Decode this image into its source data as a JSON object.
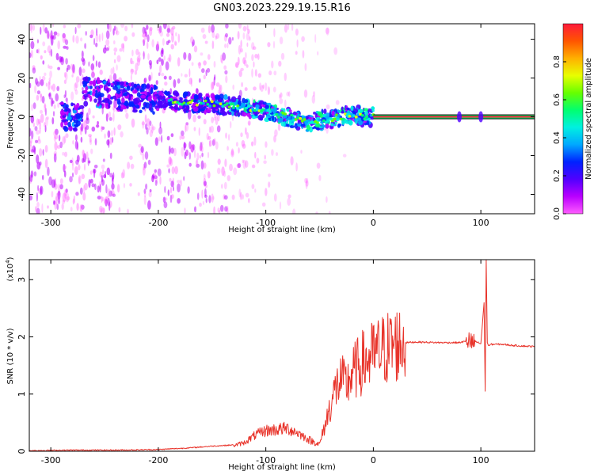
{
  "title": "GN03.2023.229.19.15.R16",
  "colors": {
    "snr_line": "#e8332a",
    "colorbar": [
      "#ff5cff",
      "#b900ff",
      "#5000ff",
      "#0022ff",
      "#00a8ff",
      "#00f0e0",
      "#00ff70",
      "#66ff00",
      "#e8ff00",
      "#ffb000",
      "#ff5500",
      "#ff1a3a"
    ]
  },
  "chart_data": [
    {
      "type": "heatmap",
      "xlabel": "Height of straight line (km)",
      "ylabel": "Frequency (Hz)",
      "xlim": [
        -320,
        150
      ],
      "ylim": [
        -50,
        48
      ],
      "xticks": [
        -300,
        -200,
        -100,
        0,
        100
      ],
      "xtick_labels": [
        "-300",
        "-200",
        "-100",
        "0",
        "100"
      ],
      "yticks": [
        -40,
        -20,
        0,
        20,
        40
      ],
      "ytick_labels": [
        "-40",
        "-20",
        "0",
        "20",
        "40"
      ],
      "colorbar": {
        "label": "Normalized spectral amplitude",
        "range": [
          0,
          1
        ],
        "ticks": [
          0.0,
          0.2,
          0.4,
          0.6,
          0.8
        ],
        "tick_labels": [
          "0.0",
          "0.2",
          "0.4",
          "0.6",
          "0.8"
        ]
      },
      "ridge": {
        "x": [
          -270,
          -250,
          -210,
          -190,
          -160,
          -140,
          -120,
          -100,
          -80,
          -60,
          -40,
          -20,
          0,
          40,
          80,
          100,
          150
        ],
        "y": [
          13,
          12,
          9,
          8,
          7,
          6,
          5,
          3,
          0,
          -3,
          -1,
          1,
          0,
          0,
          0,
          0,
          0
        ]
      }
    },
    {
      "type": "line",
      "xlabel": "Height of straight line (km)",
      "ylabel": "SNR (10 * v/v)",
      "y_scale_label": "(x10",
      "y_scale_exp": "4",
      "xlim": [
        -320,
        150
      ],
      "ylim": [
        0,
        3.35
      ],
      "xticks": [
        -300,
        -200,
        -100,
        0,
        100
      ],
      "xtick_labels": [
        "-300",
        "-200",
        "-100",
        "0",
        "100"
      ],
      "yticks": [
        0,
        1,
        2,
        3
      ],
      "ytick_labels": [
        "0",
        "1",
        "2",
        "3"
      ],
      "series": [
        {
          "x": [
            -320,
            -280,
            -240,
            -200,
            -170,
            -150,
            -130,
            -120,
            -110,
            -100,
            -90,
            -80,
            -70,
            -60,
            -50,
            -45,
            -40,
            -35,
            -30,
            -25,
            -20,
            -15,
            -10,
            -5,
            0,
            10,
            20,
            30,
            40,
            60,
            80,
            88,
            92,
            95,
            100,
            103,
            104,
            105,
            106,
            107,
            110,
            120,
            130,
            150
          ],
          "y": [
            0.0,
            0.01,
            0.01,
            0.02,
            0.05,
            0.08,
            0.1,
            0.15,
            0.28,
            0.36,
            0.38,
            0.4,
            0.32,
            0.2,
            0.12,
            0.45,
            0.8,
            1.1,
            1.25,
            1.15,
            1.35,
            1.45,
            1.55,
            1.6,
            1.68,
            1.78,
            1.86,
            1.9,
            1.91,
            1.9,
            1.9,
            1.93,
            1.88,
            1.92,
            1.88,
            2.6,
            1.05,
            3.35,
            1.9,
            1.85,
            1.87,
            1.87,
            1.85,
            1.83
          ]
        }
      ]
    }
  ]
}
